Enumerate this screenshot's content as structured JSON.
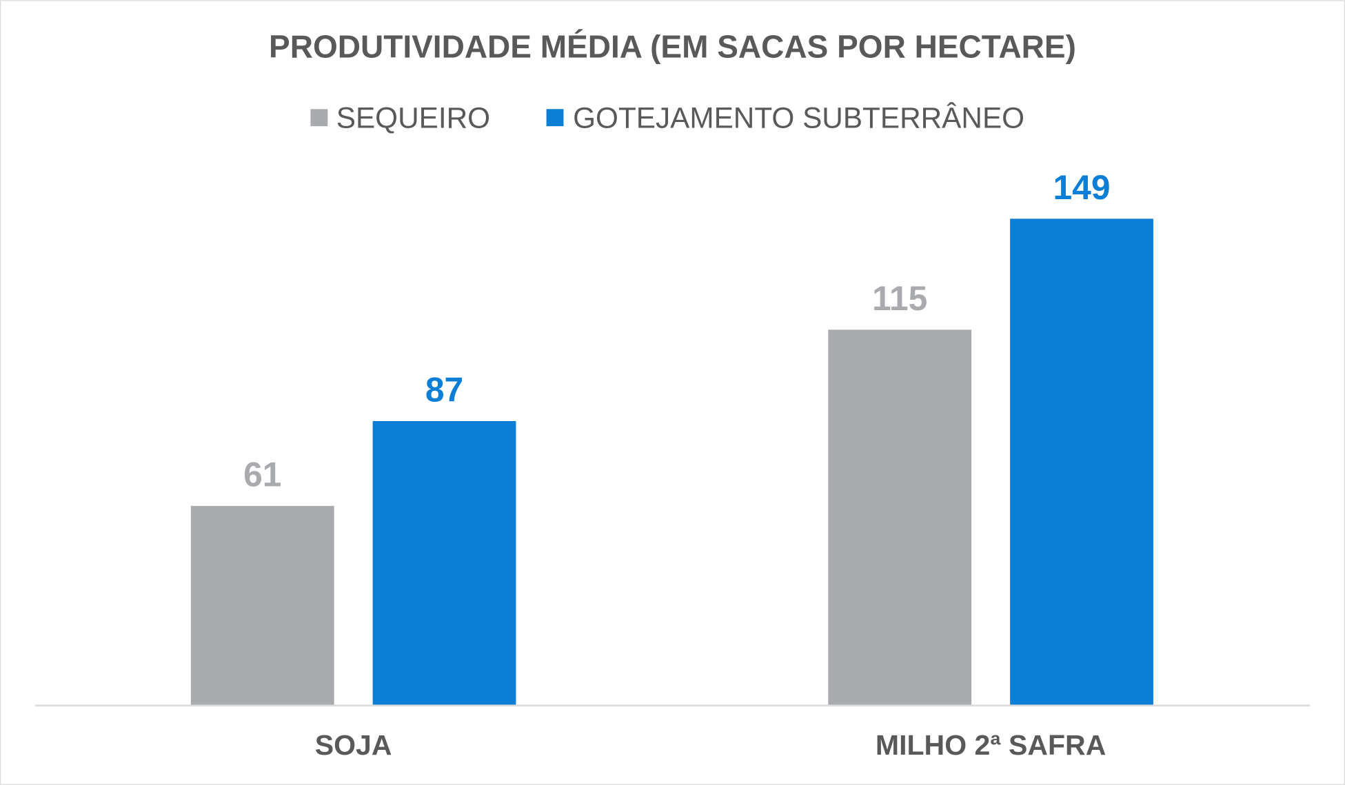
{
  "chart_data": {
    "type": "bar",
    "title": "PRODUTIVIDADE MÉDIA (EM SACAS POR HECTARE)",
    "categories": [
      "SOJA",
      "MILHO 2ª SAFRA"
    ],
    "series": [
      {
        "name": "SEQUEIRO",
        "values": [
          61,
          115
        ],
        "color": "#A9AAAD"
      },
      {
        "name": "GOTEJAMENTO SUBTERRÂNEO",
        "values": [
          87,
          149
        ],
        "color": "#0B7ED6"
      }
    ],
    "ylim": [
      0,
      160
    ],
    "grid": false,
    "legend_position": "top",
    "data_labels": true,
    "text_color": "#595959",
    "axis_color": "#D9D9D9"
  }
}
